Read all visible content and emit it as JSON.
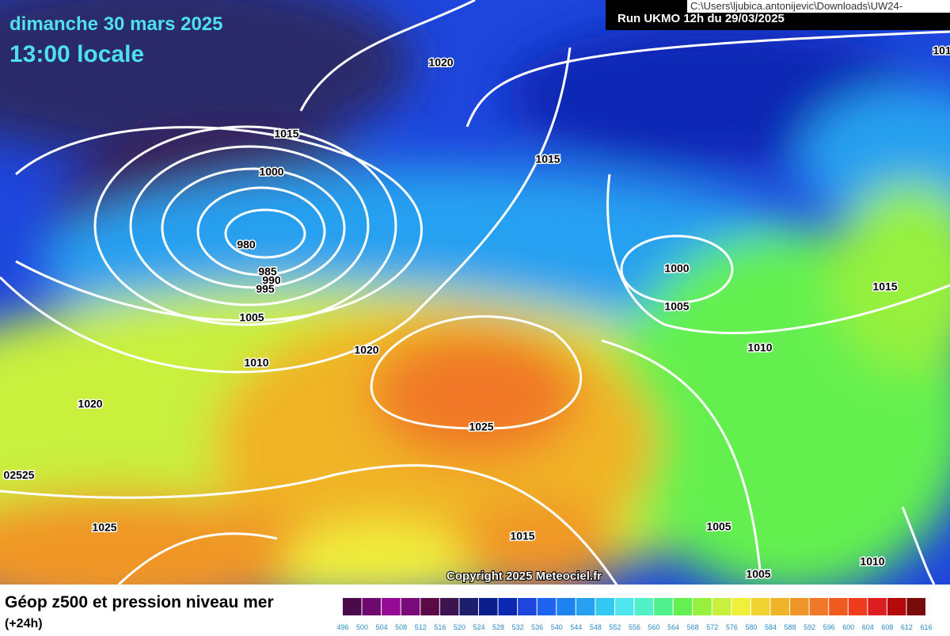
{
  "header": {
    "date": "dimanche 30 mars 2025",
    "time": "13:00 locale",
    "run": "Run UKMO 12h du 29/03/2025",
    "file_path": "C:\\Users\\ljubica.antonijevic\\Downloads\\UW24-"
  },
  "map": {
    "copyright": "Copyright 2025 Meteociel.fr",
    "isobar_labels": [
      "1020",
      "1015",
      "1000",
      "980",
      "985",
      "990",
      "995",
      "1005",
      "1010",
      "1020",
      "1020",
      "1025",
      "1015",
      "1000",
      "1005",
      "1010",
      "1015",
      "02525",
      "1025",
      "1015",
      "1005",
      "1005",
      "1010",
      "101"
    ]
  },
  "legend": {
    "title": "Géop z500 et pression niveau mer",
    "subtitle": "(+24h)",
    "ticks": [
      "496",
      "500",
      "504",
      "508",
      "512",
      "516",
      "520",
      "524",
      "528",
      "532",
      "536",
      "540",
      "544",
      "548",
      "552",
      "556",
      "560",
      "564",
      "568",
      "572",
      "576",
      "580",
      "584",
      "588",
      "592",
      "596",
      "600",
      "604",
      "608",
      "612",
      "616"
    ],
    "colors": [
      "#4b0a4b",
      "#6e0a6e",
      "#960a96",
      "#7a0a7a",
      "#5a0a46",
      "#3c1450",
      "#1e1e6e",
      "#0a1e8c",
      "#0a28b4",
      "#1e46dc",
      "#1e64f0",
      "#1e82f0",
      "#28a0f0",
      "#32c8f0",
      "#50e6f0",
      "#50f0c8",
      "#50f08c",
      "#64f050",
      "#96f03c",
      "#c8f03c",
      "#f0f03c",
      "#f0d232",
      "#f0b428",
      "#f09628",
      "#f07828",
      "#f05a1e",
      "#f03c1e",
      "#dc1e1e",
      "#b40a0a",
      "#780a0a"
    ]
  }
}
